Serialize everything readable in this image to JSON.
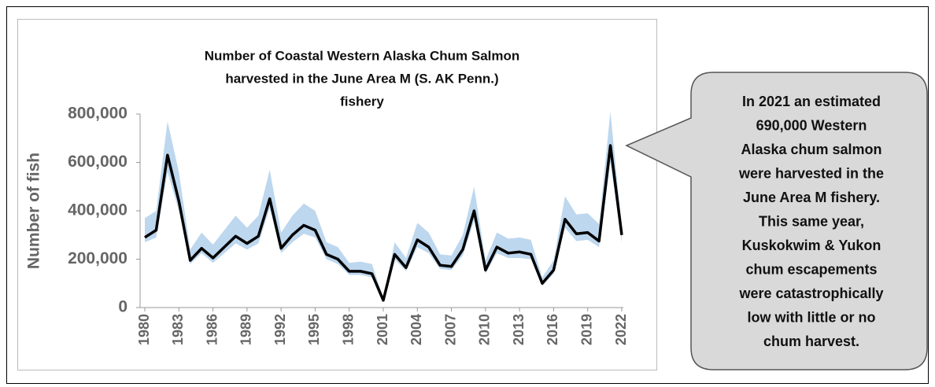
{
  "chart_data": {
    "type": "line",
    "title": [
      "Number of Coastal Western Alaska Chum Salmon",
      "harvested in the June Area M (S. AK Penn.)",
      "fishery"
    ],
    "y_label": "Number of fish",
    "x": [
      1980,
      1981,
      1982,
      1983,
      1984,
      1985,
      1986,
      1987,
      1988,
      1989,
      1990,
      1991,
      1992,
      1993,
      1994,
      1995,
      1996,
      1997,
      1998,
      1999,
      2000,
      2001,
      2002,
      2003,
      2004,
      2005,
      2006,
      2007,
      2008,
      2009,
      2010,
      2011,
      2012,
      2013,
      2014,
      2015,
      2016,
      2017,
      2018,
      2019,
      2020,
      2021,
      2022
    ],
    "series": [
      {
        "color": "#000000",
        "values": [
          290000,
          320000,
          630000,
          440000,
          195000,
          245000,
          205000,
          250000,
          295000,
          265000,
          295000,
          450000,
          245000,
          300000,
          340000,
          320000,
          220000,
          200000,
          150000,
          150000,
          140000,
          30000,
          220000,
          165000,
          280000,
          250000,
          175000,
          170000,
          240000,
          400000,
          155000,
          250000,
          225000,
          230000,
          220000,
          100000,
          155000,
          365000,
          305000,
          310000,
          275000,
          670000,
          300000
        ]
      }
    ],
    "band": {
      "color": "#bdd7ee",
      "upper": [
        370000,
        400000,
        770000,
        560000,
        240000,
        310000,
        260000,
        320000,
        380000,
        330000,
        380000,
        570000,
        310000,
        380000,
        430000,
        400000,
        270000,
        250000,
        185000,
        190000,
        180000,
        40000,
        270000,
        205000,
        350000,
        310000,
        220000,
        215000,
        300000,
        500000,
        195000,
        310000,
        285000,
        290000,
        280000,
        125000,
        195000,
        460000,
        385000,
        390000,
        345000,
        810000,
        330000
      ],
      "lower": [
        270000,
        290000,
        560000,
        400000,
        180000,
        225000,
        185000,
        225000,
        265000,
        240000,
        265000,
        410000,
        225000,
        270000,
        305000,
        290000,
        200000,
        180000,
        135000,
        135000,
        125000,
        25000,
        200000,
        150000,
        250000,
        225000,
        160000,
        155000,
        215000,
        360000,
        140000,
        225000,
        205000,
        205000,
        200000,
        90000,
        140000,
        330000,
        275000,
        280000,
        250000,
        600000,
        270000
      ]
    },
    "xlim": [
      1980,
      2022
    ],
    "xticks": [
      1980,
      1983,
      1986,
      1989,
      1992,
      1995,
      1998,
      2001,
      2004,
      2007,
      2010,
      2013,
      2016,
      2019,
      2022
    ],
    "ylim": [
      0,
      800000
    ],
    "yticks": [
      0,
      {
        "value": 200000,
        "label": "200,000"
      },
      {
        "value": 400000,
        "label": "400,000"
      },
      {
        "value": 600000,
        "label": "600,000"
      },
      {
        "value": 800000,
        "label": "800,000"
      }
    ],
    "annotation": [
      "In 2021 an estimated",
      "690,000 Western",
      "Alaska chum salmon",
      "were harvested in the",
      "June Area M fishery.",
      "This same year,",
      "Kuskokwim & Yukon",
      "chum escapements",
      "were catastrophically",
      "low with little or no",
      "chum harvest."
    ]
  }
}
